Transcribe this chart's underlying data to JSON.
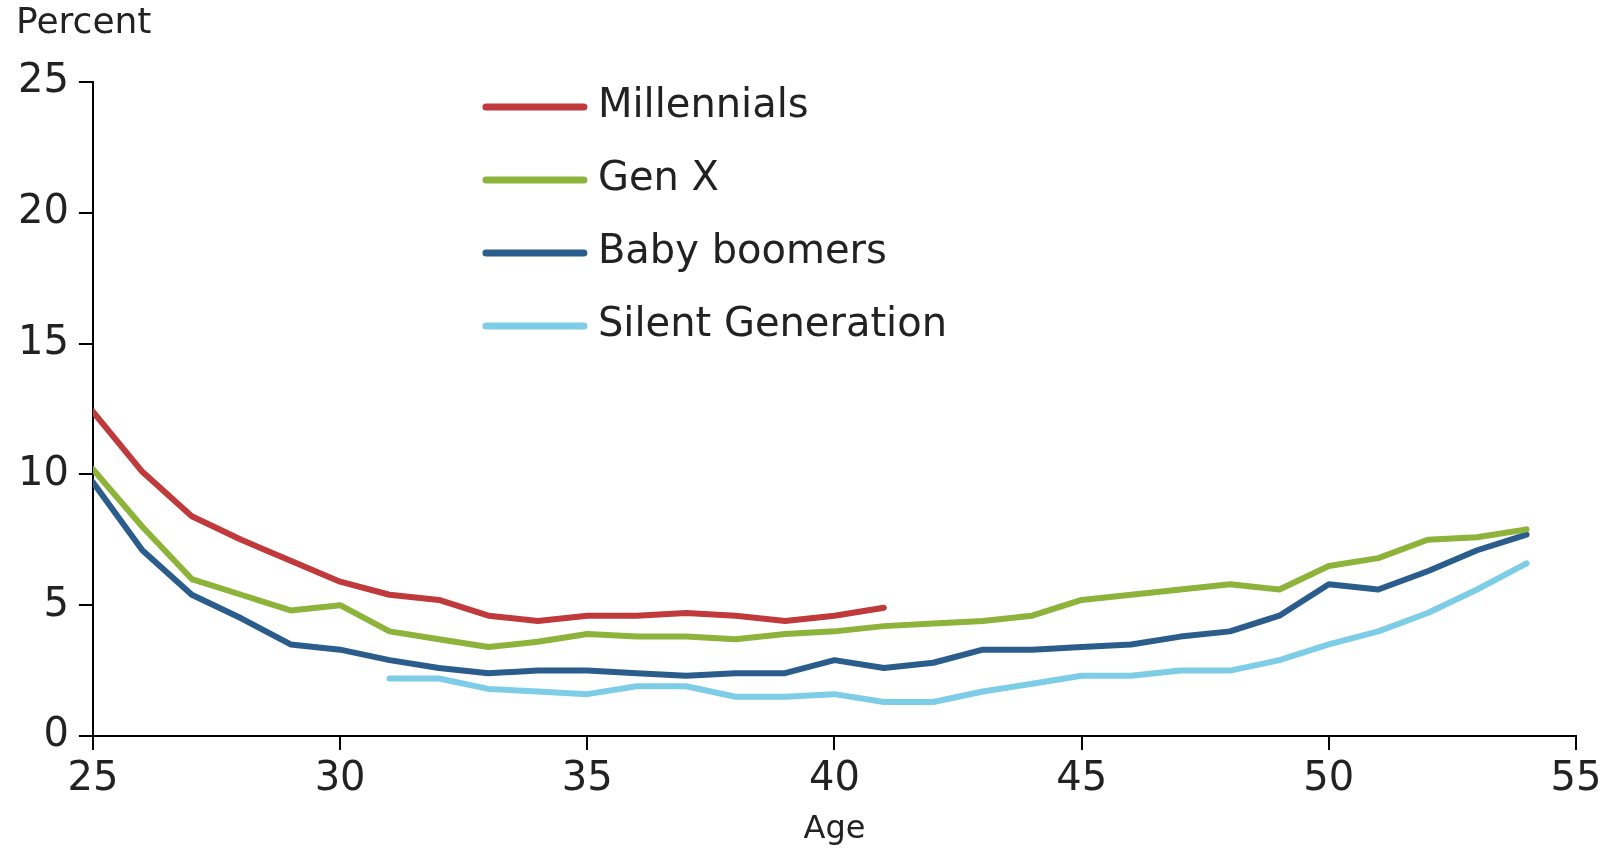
{
  "chart_data": {
    "type": "line",
    "xlabel": "Age",
    "ylabel": "Percent",
    "xlim": [
      25,
      55
    ],
    "xticks": [
      25,
      30,
      35,
      40,
      45,
      50,
      55
    ],
    "ylim": [
      0,
      25
    ],
    "yticks": [
      0,
      5,
      10,
      15,
      20,
      25
    ],
    "grid": false,
    "legend": "top left",
    "marker": "none",
    "line_style": "solid",
    "series": [
      {
        "name": "Millennials",
        "color": "#c0393b",
        "x": [
          25,
          26,
          27,
          28,
          29,
          30,
          31,
          32,
          33,
          34,
          35,
          36,
          37,
          38,
          39,
          40,
          41
        ],
        "values": [
          12.4,
          10.1,
          8.4,
          7.5,
          6.7,
          5.9,
          5.4,
          5.2,
          4.6,
          4.4,
          4.6,
          4.6,
          4.7,
          4.6,
          4.4,
          4.6,
          4.9
        ]
      },
      {
        "name": "Gen X",
        "color": "#8db33a",
        "x": [
          25,
          26,
          27,
          28,
          29,
          30,
          31,
          32,
          33,
          34,
          35,
          36,
          37,
          38,
          39,
          40,
          41,
          42,
          43,
          44,
          45,
          46,
          47,
          48,
          49,
          50,
          51,
          52,
          53,
          54
        ],
        "values": [
          10.2,
          8.0,
          6.0,
          5.4,
          4.8,
          5.0,
          4.0,
          3.7,
          3.4,
          3.6,
          3.9,
          3.8,
          3.8,
          3.7,
          3.9,
          4.0,
          4.2,
          4.3,
          4.4,
          4.6,
          5.2,
          5.4,
          5.6,
          5.8,
          5.6,
          6.5,
          6.8,
          7.5,
          7.6,
          7.9
        ]
      },
      {
        "name": "Baby boomers",
        "color": "#2b5d8c",
        "x": [
          25,
          26,
          27,
          28,
          29,
          30,
          31,
          32,
          33,
          34,
          35,
          36,
          37,
          38,
          39,
          40,
          41,
          42,
          43,
          44,
          45,
          46,
          47,
          48,
          49,
          50,
          51,
          52,
          53,
          54
        ],
        "values": [
          9.7,
          7.1,
          5.4,
          4.5,
          3.5,
          3.3,
          2.9,
          2.6,
          2.4,
          2.5,
          2.5,
          2.4,
          2.3,
          2.4,
          2.4,
          2.9,
          2.6,
          2.8,
          3.3,
          3.3,
          3.4,
          3.5,
          3.8,
          4.0,
          4.6,
          5.8,
          5.6,
          6.3,
          7.1,
          7.7
        ]
      },
      {
        "name": "Silent Generation",
        "color": "#7ecde6",
        "x": [
          31,
          32,
          33,
          34,
          35,
          36,
          37,
          38,
          39,
          40,
          41,
          42,
          43,
          44,
          45,
          46,
          47,
          48,
          49,
          50,
          51,
          52,
          53,
          54
        ],
        "values": [
          2.2,
          2.2,
          1.8,
          1.7,
          1.6,
          1.9,
          1.9,
          1.5,
          1.5,
          1.6,
          1.3,
          1.3,
          1.7,
          2.0,
          2.3,
          2.3,
          2.5,
          2.5,
          2.9,
          3.5,
          4.0,
          4.7,
          5.6,
          6.6
        ]
      }
    ]
  }
}
